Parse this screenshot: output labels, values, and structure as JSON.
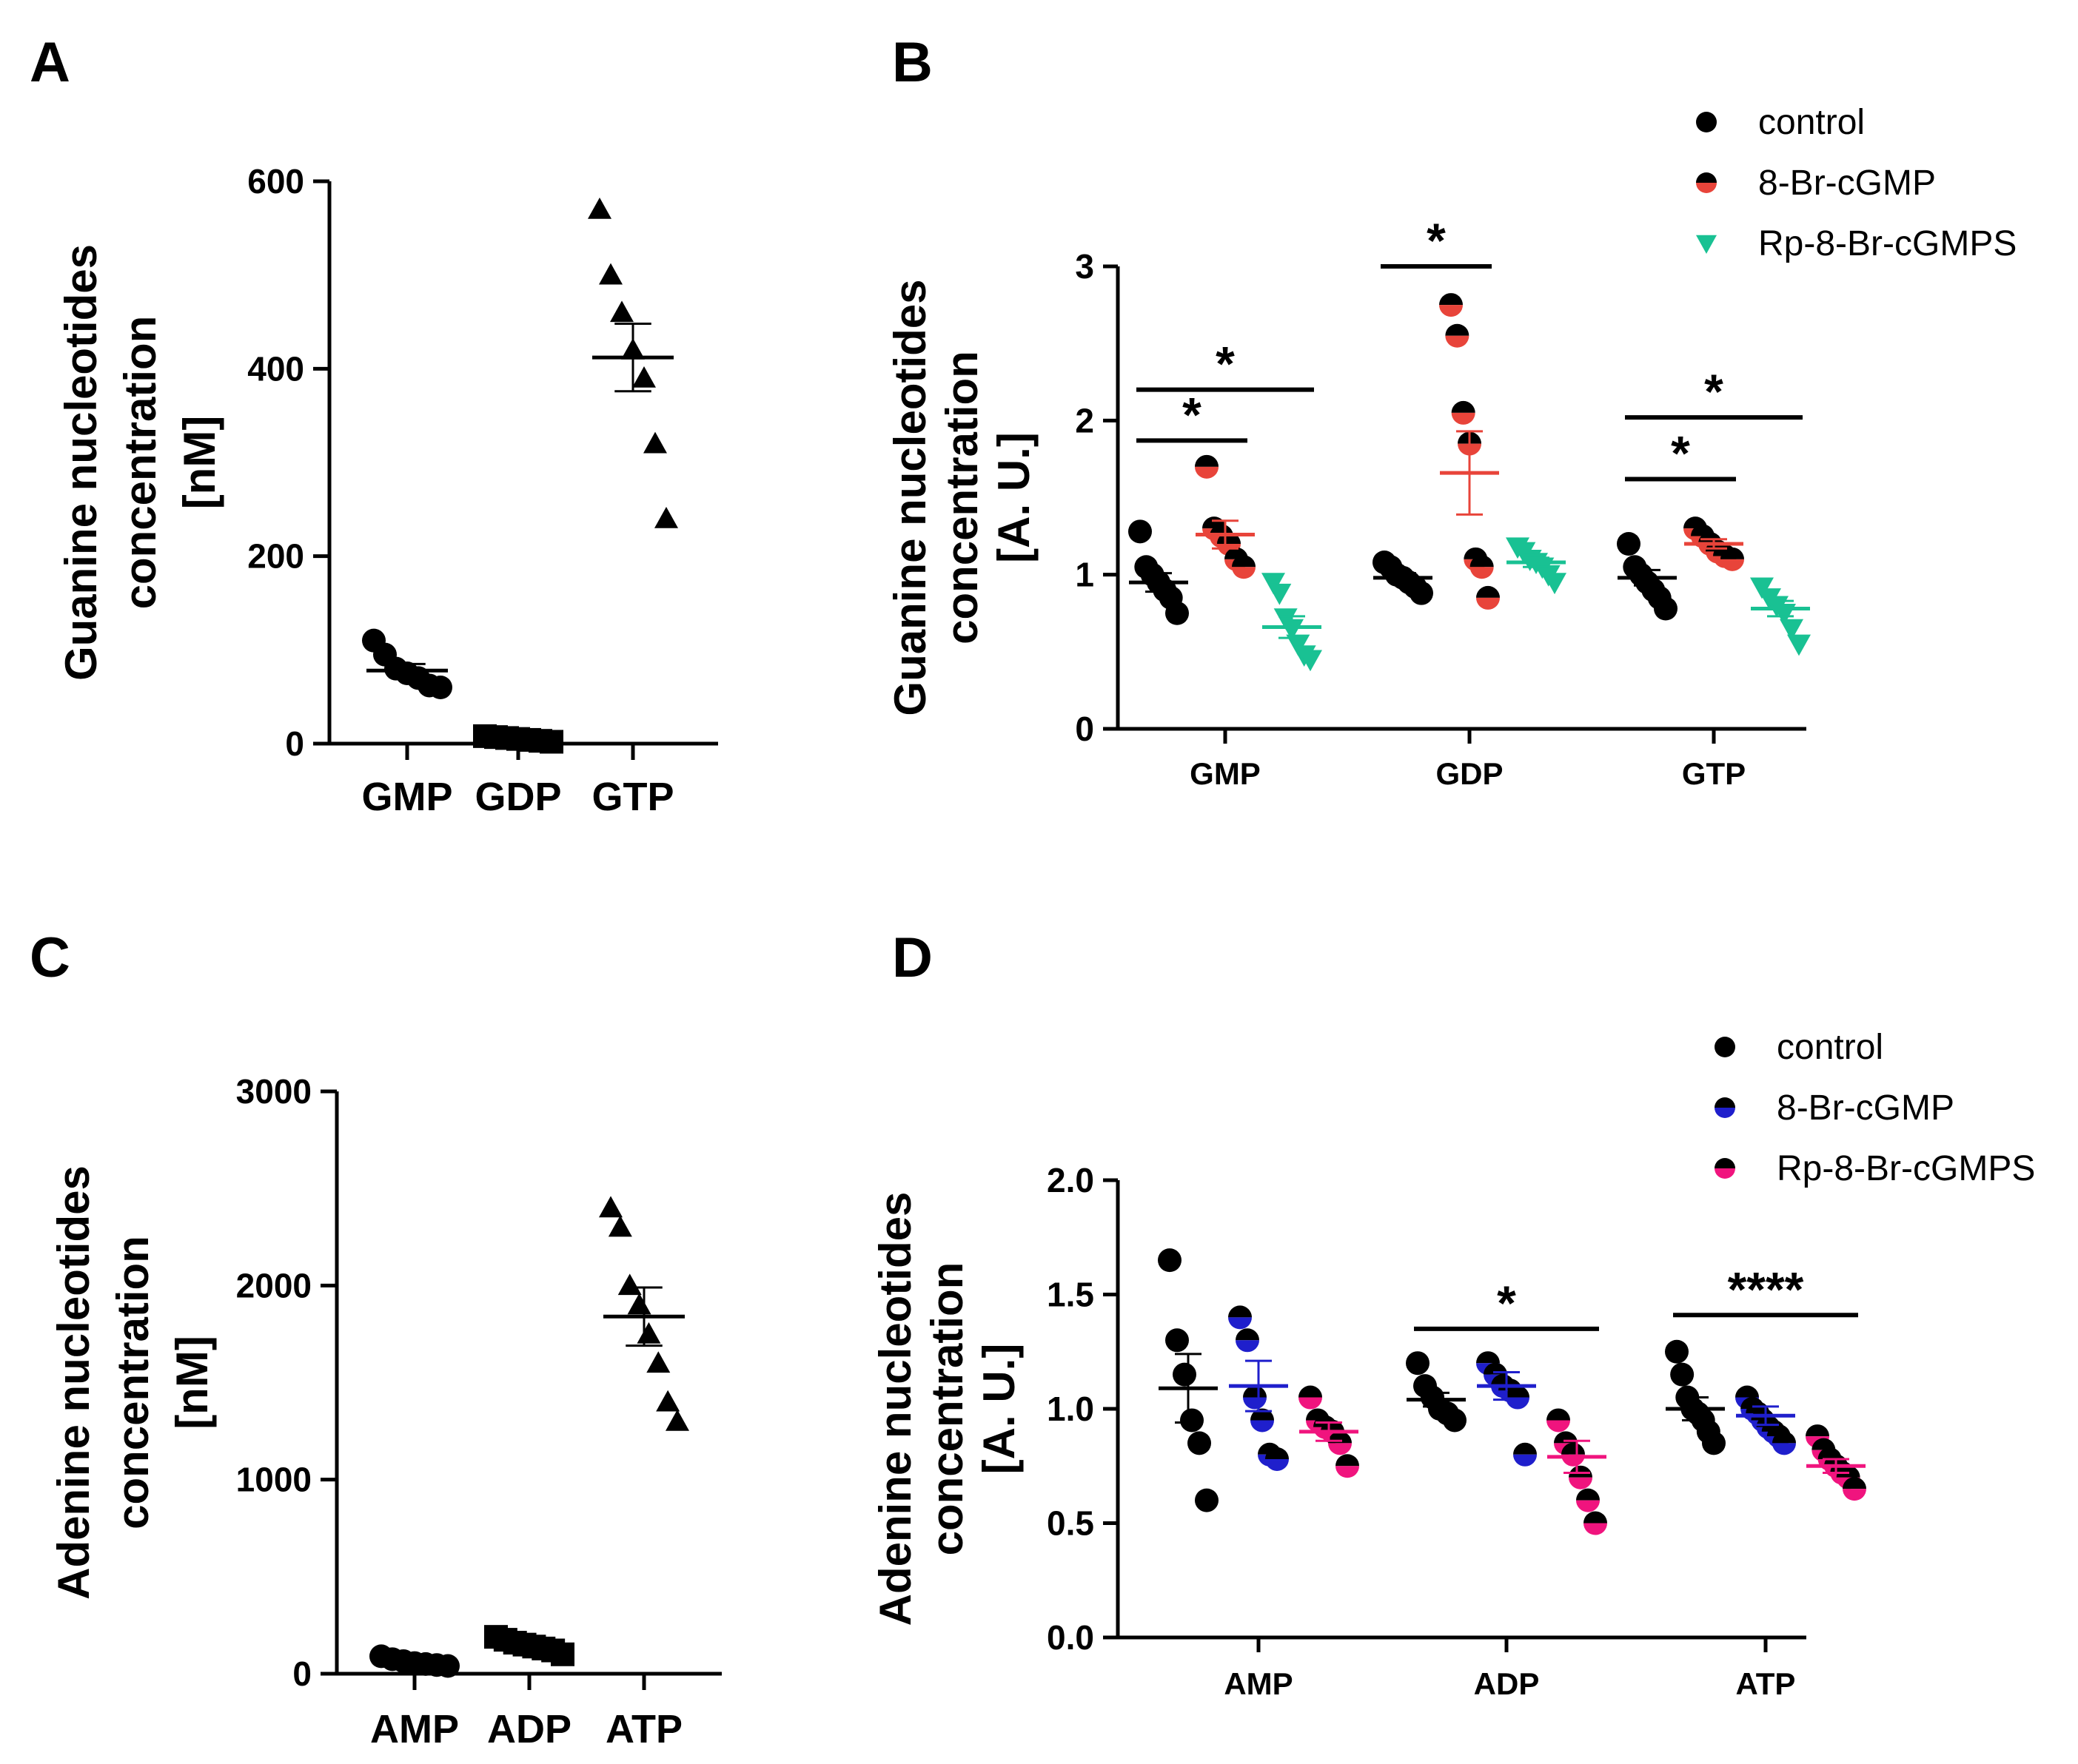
{
  "figure": {
    "panels": [
      "A",
      "B",
      "C",
      "D"
    ]
  },
  "chart_data": [
    {
      "id": "A",
      "type": "scatter",
      "panel_label": "A",
      "ylabel": [
        "Guanine nucleotides",
        "concentration",
        "[nM]"
      ],
      "ylim": [
        0,
        600
      ],
      "yticks": [
        0,
        200,
        400,
        600
      ],
      "categories": [
        "GMP",
        "GDP",
        "GTP"
      ],
      "marker": "triangle",
      "points": [
        [
          110,
          95,
          80,
          75,
          70,
          62,
          60
        ],
        [
          8,
          7,
          6,
          5,
          4,
          3,
          2
        ],
        [
          570,
          500,
          460,
          420,
          390,
          320,
          240
        ]
      ],
      "mean": [
        78,
        6,
        412
      ],
      "sem": [
        7,
        1,
        36
      ],
      "marker_per_category": [
        "circle",
        "square",
        "triangle"
      ]
    },
    {
      "id": "B",
      "type": "scatter",
      "panel_label": "B",
      "ylabel": [
        "Guanine nucleotides",
        "concentration",
        "[A. U.]"
      ],
      "ylim": [
        0,
        3
      ],
      "yticks": [
        0,
        1,
        2,
        3
      ],
      "categories": [
        "GMP",
        "GDP",
        "GTP"
      ],
      "series": [
        {
          "name": "control",
          "color": "#000000",
          "marker": "circle",
          "points": [
            [
              1.28,
              1.05,
              1.0,
              0.95,
              0.9,
              0.85,
              0.75
            ],
            [
              1.08,
              1.05,
              1.0,
              0.98,
              0.95,
              0.92,
              0.88
            ],
            [
              1.2,
              1.05,
              1.0,
              0.95,
              0.9,
              0.85,
              0.78
            ]
          ],
          "mean": [
            0.95,
            0.98,
            0.98
          ],
          "sem": [
            0.06,
            0.03,
            0.05
          ]
        },
        {
          "name": "8-Br-cGMP",
          "color": "#e8443a",
          "marker": "circle",
          "points": [
            [
              1.7,
              1.3,
              1.25,
              1.2,
              1.1,
              1.05
            ],
            [
              2.75,
              2.55,
              2.05,
              1.85,
              1.1,
              1.05,
              0.85
            ],
            [
              1.3,
              1.25,
              1.2,
              1.15,
              1.12,
              1.1
            ]
          ],
          "mean": [
            1.26,
            1.66,
            1.2
          ],
          "sem": [
            0.09,
            0.27,
            0.03
          ]
        },
        {
          "name": "Rp-8-Br-cGMPS",
          "color": "#19c193",
          "marker": "triangle-down",
          "points": [
            [
              0.95,
              0.88,
              0.72,
              0.65,
              0.55,
              0.48,
              0.45
            ],
            [
              1.18,
              1.15,
              1.1,
              1.08,
              1.05,
              1.0,
              0.95
            ],
            [
              0.92,
              0.85,
              0.8,
              0.75,
              0.65,
              0.55
            ]
          ],
          "mean": [
            0.66,
            1.08,
            0.78
          ],
          "sem": [
            0.07,
            0.03,
            0.05
          ]
        }
      ],
      "significance": [
        {
          "label": "*",
          "category": 0,
          "from": 0,
          "to": 1,
          "y": 1.87
        },
        {
          "label": "*",
          "category": 0,
          "from": 0,
          "to": 2,
          "y": 2.2
        },
        {
          "label": "*",
          "category": 1,
          "from": 0,
          "to": 1,
          "y": 3.0
        },
        {
          "label": "*",
          "category": 2,
          "from": 0,
          "to": 1,
          "y": 1.62
        },
        {
          "label": "*",
          "category": 2,
          "from": 0,
          "to": 2,
          "y": 2.02
        }
      ]
    },
    {
      "id": "C",
      "type": "scatter",
      "panel_label": "C",
      "ylabel": [
        "Adenine nucleotides",
        "concentration",
        "[nM]"
      ],
      "ylim": [
        0,
        3000
      ],
      "yticks": [
        0,
        1000,
        2000,
        3000
      ],
      "categories": [
        "AMP",
        "ADP",
        "ATP"
      ],
      "points": [
        [
          90,
          75,
          65,
          55,
          50,
          45,
          40
        ],
        [
          190,
          175,
          160,
          150,
          140,
          130,
          120,
          100
        ],
        [
          2400,
          2300,
          2000,
          1900,
          1750,
          1600,
          1400,
          1300
        ]
      ],
      "mean": [
        60,
        146,
        1840
      ],
      "sem": [
        7,
        10,
        150
      ],
      "marker_per_category": [
        "circle",
        "square",
        "triangle"
      ]
    },
    {
      "id": "D",
      "type": "scatter",
      "panel_label": "D",
      "ylabel": [
        "Adenine nucleotides",
        "concentration",
        "[A. U.]"
      ],
      "ylim": [
        0,
        2
      ],
      "yticks": [
        "0.0",
        "0.5",
        "1.0",
        "1.5",
        "2.0"
      ],
      "categories": [
        "AMP",
        "ADP",
        "ATP"
      ],
      "series": [
        {
          "name": "control",
          "color": "#000000",
          "marker": "circle",
          "points": [
            [
              1.65,
              1.3,
              1.15,
              0.95,
              0.85,
              0.6
            ],
            [
              1.2,
              1.1,
              1.05,
              1.0,
              0.98,
              0.95
            ],
            [
              1.25,
              1.15,
              1.05,
              1.0,
              0.98,
              0.95,
              0.9,
              0.85
            ]
          ],
          "mean": [
            1.09,
            1.04,
            1.0
          ],
          "sem": [
            0.15,
            0.03,
            0.05
          ]
        },
        {
          "name": "8-Br-cGMP",
          "color": "#1f1fcc",
          "marker": "circle",
          "points": [
            [
              1.4,
              1.3,
              1.05,
              0.95,
              0.8,
              0.78
            ],
            [
              1.2,
              1.15,
              1.1,
              1.08,
              1.05,
              0.8
            ],
            [
              1.05,
              1.0,
              0.98,
              0.95,
              0.92,
              0.9,
              0.88,
              0.85
            ]
          ],
          "mean": [
            1.1,
            1.1,
            0.97
          ],
          "sem": [
            0.11,
            0.06,
            0.04
          ]
        },
        {
          "name": "Rp-8-Br-cGMPS",
          "color": "#f0147e",
          "marker": "circle",
          "points": [
            [
              1.05,
              0.95,
              0.92,
              0.9,
              0.85,
              0.75
            ],
            [
              0.95,
              0.85,
              0.8,
              0.7,
              0.6,
              0.5
            ],
            [
              0.88,
              0.82,
              0.78,
              0.75,
              0.72,
              0.7,
              0.65
            ]
          ],
          "mean": [
            0.9,
            0.79,
            0.75
          ],
          "sem": [
            0.04,
            0.07,
            0.03
          ]
        }
      ],
      "significance": [
        {
          "label": "*",
          "category": 1,
          "from": 0,
          "to": 2,
          "y": 1.35
        },
        {
          "label": "****",
          "category": 2,
          "from": 0,
          "to": 2,
          "y": 1.41
        }
      ]
    }
  ]
}
